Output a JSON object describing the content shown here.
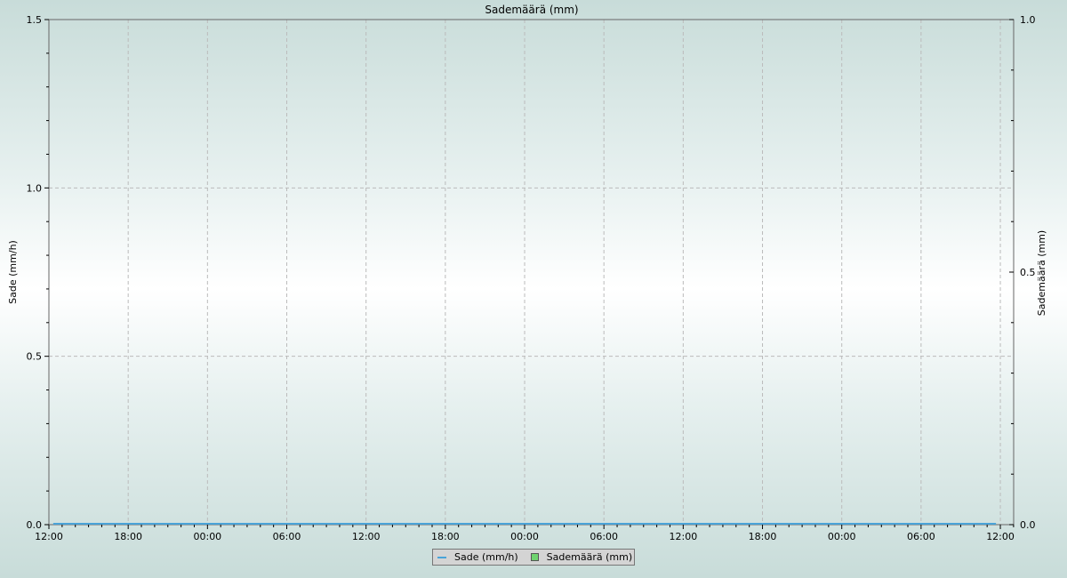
{
  "chart_data": {
    "type": "line",
    "title": "Sademäärä (mm)",
    "ylabel_left": "Sade (mm/h)",
    "ylabel_right": "Sademäärä (mm)",
    "x_tick_labels": [
      "12:00",
      "18:00",
      "00:00",
      "06:00",
      "12:00",
      "18:00",
      "00:00",
      "06:00",
      "12:00",
      "18:00",
      "00:00",
      "06:00",
      "12:00"
    ],
    "xlim_hours": [
      0,
      73
    ],
    "ylim_left": [
      0,
      1.5
    ],
    "ylim_right": [
      0,
      1.0
    ],
    "y_left_tick_labels": [
      "0.0",
      "0.5",
      "1.0",
      "1.5"
    ],
    "y_right_tick_labels": [
      "0.0",
      "0.5",
      "1.0"
    ],
    "grid": true,
    "legend_placement": "bottom-center",
    "series": [
      {
        "name": "Sade (mm/h)",
        "axis": "left",
        "color": "#4aa3d8",
        "x_hours": [
          0.33,
          71.67
        ],
        "values": [
          0,
          0
        ]
      },
      {
        "name": "Sademäärä (mm)",
        "axis": "right",
        "color": "#6fd36f",
        "x_hours": [],
        "values": []
      }
    ]
  },
  "colors": {
    "left_axis_label": "#1f5f9f",
    "right_axis_label": "#1f6f1f"
  }
}
